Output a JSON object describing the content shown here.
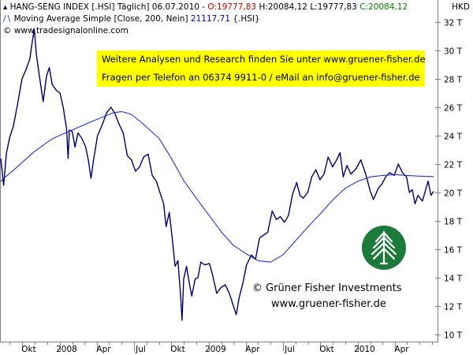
{
  "header": {
    "line1_prefix": "HANG-SENG INDEX [.HSI] Täglich] 06.07.2010 - ",
    "open_label": "O:19777,83",
    "high_label": " H:20084,12",
    "low_label": " L:19777,83",
    "close_label": " C:20084,12",
    "line2_prefix": "Moving Average Simple [Close, 200, Nein] ",
    "ma_value": "21117,71",
    "line2_suffix": " {.HSI}",
    "line3": "© www.tradesignalonline.com",
    "currency": "HKD"
  },
  "banner": {
    "line1": "Weitere Analysen und Research finden Sie unter www.gruener-fisher.de",
    "line2": "Fragen per Telefon an 06374 9911-0 / eMail an info@gruener-fisher.de",
    "background": "#ffff00"
  },
  "credit": {
    "line1": "©  Grüner Fisher Investments",
    "line2": "www.gruener-fisher.de",
    "logo_color": "#1c7a3a",
    "logo_icon": "tree-icon"
  },
  "chart_data": {
    "type": "line",
    "title": "HANG-SENG INDEX [.HSI] Täglich] 06.07.2010",
    "ylabel": "HKD",
    "y_axis_side": "right",
    "ylim": [
      10000,
      32500
    ],
    "y_ticks": [
      10000,
      12000,
      14000,
      16000,
      18000,
      20000,
      22000,
      24000,
      26000,
      28000,
      30000,
      32000
    ],
    "y_tick_labels": [
      "10 T",
      "12 T",
      "14 T",
      "16 T",
      "18 T",
      "20 T",
      "22 T",
      "24 T",
      "26 T",
      "28 T",
      "30 T",
      "32 T"
    ],
    "x_range": [
      "2007-08-10",
      "2010-07-15"
    ],
    "x_ticks": [
      {
        "date": "2007-10-01",
        "label": "Okt"
      },
      {
        "date": "2008-01-01",
        "label": "2008"
      },
      {
        "date": "2008-04-01",
        "label": "Apr"
      },
      {
        "date": "2008-07-01",
        "label": "Jul"
      },
      {
        "date": "2008-10-01",
        "label": "Okt"
      },
      {
        "date": "2009-01-01",
        "label": "2009"
      },
      {
        "date": "2009-04-01",
        "label": "Apr"
      },
      {
        "date": "2009-07-01",
        "label": "Jul"
      },
      {
        "date": "2009-10-01",
        "label": "Okt"
      },
      {
        "date": "2010-01-01",
        "label": "2010"
      },
      {
        "date": "2010-04-01",
        "label": "Apr"
      }
    ],
    "grid": false,
    "series": [
      {
        "name": "HANG-SENG INDEX [.HSI]",
        "color": "#000066",
        "points": [
          [
            "2007-08-10",
            22400
          ],
          [
            "2007-08-17",
            20500
          ],
          [
            "2007-08-24",
            22800
          ],
          [
            "2007-09-01",
            23900
          ],
          [
            "2007-09-10",
            24700
          ],
          [
            "2007-09-20",
            26200
          ],
          [
            "2007-10-01",
            28000
          ],
          [
            "2007-10-10",
            28600
          ],
          [
            "2007-10-20",
            29400
          ],
          [
            "2007-10-26",
            30600
          ],
          [
            "2007-10-31",
            31500
          ],
          [
            "2007-11-05",
            29800
          ],
          [
            "2007-11-12",
            28300
          ],
          [
            "2007-11-22",
            26400
          ],
          [
            "2007-11-30",
            28200
          ],
          [
            "2007-12-07",
            28800
          ],
          [
            "2007-12-14",
            27600
          ],
          [
            "2007-12-24",
            27200
          ],
          [
            "2008-01-02",
            27000
          ],
          [
            "2008-01-10",
            26000
          ],
          [
            "2008-01-18",
            24500
          ],
          [
            "2008-01-22",
            22400
          ],
          [
            "2008-01-25",
            24400
          ],
          [
            "2008-02-01",
            24300
          ],
          [
            "2008-02-08",
            23200
          ],
          [
            "2008-02-15",
            24200
          ],
          [
            "2008-02-25",
            23800
          ],
          [
            "2008-03-05",
            23200
          ],
          [
            "2008-03-12",
            22200
          ],
          [
            "2008-03-18",
            21000
          ],
          [
            "2008-03-25",
            22400
          ],
          [
            "2008-04-03",
            24000
          ],
          [
            "2008-04-15",
            24800
          ],
          [
            "2008-04-25",
            25600
          ],
          [
            "2008-05-06",
            26000
          ],
          [
            "2008-05-15",
            25600
          ],
          [
            "2008-05-26",
            24800
          ],
          [
            "2008-06-05",
            24200
          ],
          [
            "2008-06-15",
            22600
          ],
          [
            "2008-06-25",
            22300
          ],
          [
            "2008-07-05",
            21500
          ],
          [
            "2008-07-15",
            21800
          ],
          [
            "2008-07-25",
            22500
          ],
          [
            "2008-08-05",
            22700
          ],
          [
            "2008-08-15",
            21200
          ],
          [
            "2008-08-25",
            20800
          ],
          [
            "2008-09-05",
            19800
          ],
          [
            "2008-09-12",
            19200
          ],
          [
            "2008-09-18",
            17600
          ],
          [
            "2008-09-26",
            18600
          ],
          [
            "2008-10-06",
            16000
          ],
          [
            "2008-10-10",
            14800
          ],
          [
            "2008-10-17",
            15200
          ],
          [
            "2008-10-24",
            12600
          ],
          [
            "2008-10-27",
            11000
          ],
          [
            "2008-10-31",
            13900
          ],
          [
            "2008-11-07",
            14800
          ],
          [
            "2008-11-14",
            13600
          ],
          [
            "2008-11-20",
            12700
          ],
          [
            "2008-11-28",
            13900
          ],
          [
            "2008-12-05",
            14000
          ],
          [
            "2008-12-12",
            15100
          ],
          [
            "2008-12-22",
            14900
          ],
          [
            "2009-01-02",
            15000
          ],
          [
            "2009-01-09",
            14300
          ],
          [
            "2009-01-20",
            12900
          ],
          [
            "2009-01-30",
            13300
          ],
          [
            "2009-02-10",
            13500
          ],
          [
            "2009-02-20",
            12900
          ],
          [
            "2009-03-02",
            12000
          ],
          [
            "2009-03-09",
            11400
          ],
          [
            "2009-03-16",
            12600
          ],
          [
            "2009-03-25",
            13600
          ],
          [
            "2009-04-03",
            14900
          ],
          [
            "2009-04-15",
            15600
          ],
          [
            "2009-04-25",
            15300
          ],
          [
            "2009-05-05",
            16800
          ],
          [
            "2009-05-15",
            17000
          ],
          [
            "2009-05-25",
            17200
          ],
          [
            "2009-06-05",
            18700
          ],
          [
            "2009-06-15",
            18100
          ],
          [
            "2009-06-25",
            18300
          ],
          [
            "2009-07-05",
            17900
          ],
          [
            "2009-07-15",
            18400
          ],
          [
            "2009-07-25",
            19900
          ],
          [
            "2009-08-04",
            20700
          ],
          [
            "2009-08-12",
            19800
          ],
          [
            "2009-08-20",
            19600
          ],
          [
            "2009-08-31",
            20000
          ],
          [
            "2009-09-10",
            21100
          ],
          [
            "2009-09-20",
            21600
          ],
          [
            "2009-09-30",
            20900
          ],
          [
            "2009-10-10",
            21300
          ],
          [
            "2009-10-20",
            22500
          ],
          [
            "2009-10-31",
            21800
          ],
          [
            "2009-11-10",
            22300
          ],
          [
            "2009-11-18",
            22800
          ],
          [
            "2009-11-26",
            21100
          ],
          [
            "2009-12-05",
            21900
          ],
          [
            "2009-12-15",
            21300
          ],
          [
            "2009-12-28",
            21700
          ],
          [
            "2010-01-08",
            22300
          ],
          [
            "2010-01-20",
            21300
          ],
          [
            "2010-01-31",
            20100
          ],
          [
            "2010-02-08",
            19500
          ],
          [
            "2010-02-20",
            20300
          ],
          [
            "2010-03-01",
            20600
          ],
          [
            "2010-03-10",
            21100
          ],
          [
            "2010-03-20",
            21400
          ],
          [
            "2010-03-31",
            21200
          ],
          [
            "2010-04-10",
            22000
          ],
          [
            "2010-04-20",
            21400
          ],
          [
            "2010-04-30",
            21100
          ],
          [
            "2010-05-07",
            20000
          ],
          [
            "2010-05-14",
            20200
          ],
          [
            "2010-05-21",
            19200
          ],
          [
            "2010-05-28",
            19800
          ],
          [
            "2010-06-08",
            19400
          ],
          [
            "2010-06-15",
            20100
          ],
          [
            "2010-06-22",
            20800
          ],
          [
            "2010-06-29",
            19800
          ],
          [
            "2010-07-06",
            20084
          ]
        ]
      },
      {
        "name": "Moving Average Simple [Close, 200, Nein]",
        "color": "#2233cc",
        "points": [
          [
            "2007-08-10",
            20800
          ],
          [
            "2007-09-15",
            21700
          ],
          [
            "2007-11-01",
            22900
          ],
          [
            "2007-12-15",
            23800
          ],
          [
            "2008-02-01",
            24400
          ],
          [
            "2008-03-20",
            25000
          ],
          [
            "2008-05-10",
            25600
          ],
          [
            "2008-06-01",
            25700
          ],
          [
            "2008-06-25",
            25500
          ],
          [
            "2008-07-25",
            24800
          ],
          [
            "2008-09-01",
            23800
          ],
          [
            "2008-10-01",
            22400
          ],
          [
            "2008-11-01",
            20800
          ],
          [
            "2008-12-01",
            19600
          ],
          [
            "2009-01-01",
            18400
          ],
          [
            "2009-02-01",
            17200
          ],
          [
            "2009-03-01",
            16300
          ],
          [
            "2009-04-01",
            15700
          ],
          [
            "2009-05-01",
            15200
          ],
          [
            "2009-06-01",
            15100
          ],
          [
            "2009-07-01",
            15600
          ],
          [
            "2009-08-01",
            16600
          ],
          [
            "2009-09-01",
            17600
          ],
          [
            "2009-10-01",
            18500
          ],
          [
            "2009-11-01",
            19500
          ],
          [
            "2009-12-01",
            20300
          ],
          [
            "2010-01-01",
            20800
          ],
          [
            "2010-02-01",
            21100
          ],
          [
            "2010-03-01",
            21200
          ],
          [
            "2010-04-01",
            21250
          ],
          [
            "2010-05-01",
            21200
          ],
          [
            "2010-06-01",
            21150
          ],
          [
            "2010-07-06",
            21118
          ]
        ]
      }
    ]
  }
}
